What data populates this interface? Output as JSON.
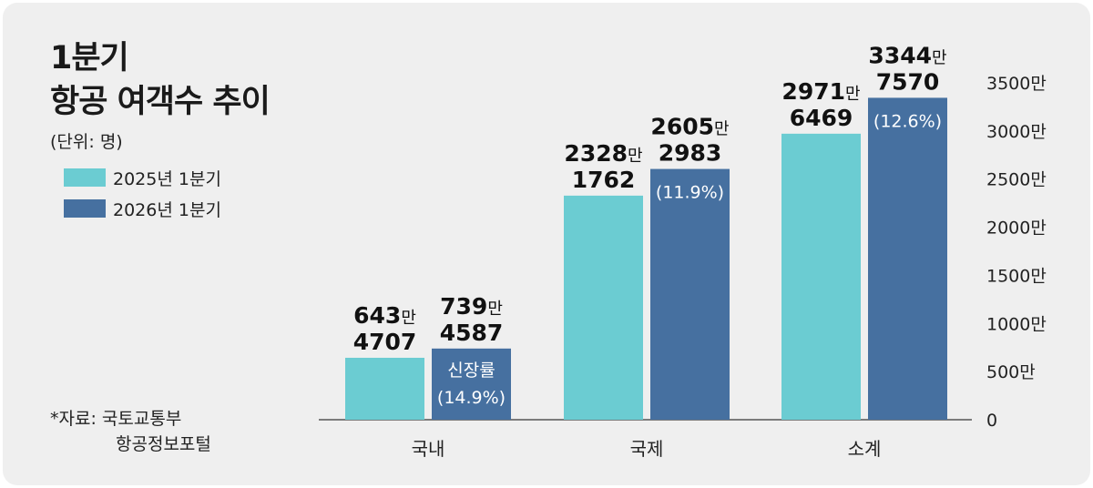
{
  "title_line1": "1분기",
  "title_line2": "항공 여객수 추이",
  "unit": "(단위: 명)",
  "source_line1": "*자료: 국토교통부",
  "source_line2": "항공정보포털",
  "colors": {
    "s2025": "#6bccd2",
    "s2026": "#4670a0"
  },
  "chart_data": {
    "type": "bar",
    "categories": [
      "국내",
      "국제",
      "소계"
    ],
    "series": [
      {
        "name": "2025년 1분기",
        "values": [
          6434707,
          23281762,
          29716469
        ],
        "labels": [
          {
            "big": "643",
            "unit": "만",
            "rest": "4707"
          },
          {
            "big": "2328",
            "unit": "만",
            "rest": "1762"
          },
          {
            "big": "2971",
            "unit": "만",
            "rest": "6469"
          }
        ]
      },
      {
        "name": "2026년 1분기",
        "values": [
          7394587,
          26052983,
          33447570
        ],
        "labels": [
          {
            "big": "739",
            "unit": "만",
            "rest": "4587"
          },
          {
            "big": "2605",
            "unit": "만",
            "rest": "2983"
          },
          {
            "big": "3344",
            "unit": "만",
            "rest": "7570"
          }
        ],
        "growth_label": "신장률",
        "growth": [
          "(14.9%)",
          "(11.9%)",
          "(12.6%)"
        ]
      }
    ],
    "y_ticks": [
      {
        "v": 0,
        "label": "0"
      },
      {
        "v": 5000000,
        "label": "500만"
      },
      {
        "v": 10000000,
        "label": "1000만"
      },
      {
        "v": 15000000,
        "label": "1500만"
      },
      {
        "v": 20000000,
        "label": "2000만"
      },
      {
        "v": 25000000,
        "label": "2500만"
      },
      {
        "v": 30000000,
        "label": "3000만"
      },
      {
        "v": 35000000,
        "label": "3500만"
      }
    ],
    "ylim": [
      0,
      35000000
    ],
    "grid": false,
    "legend": "left"
  }
}
